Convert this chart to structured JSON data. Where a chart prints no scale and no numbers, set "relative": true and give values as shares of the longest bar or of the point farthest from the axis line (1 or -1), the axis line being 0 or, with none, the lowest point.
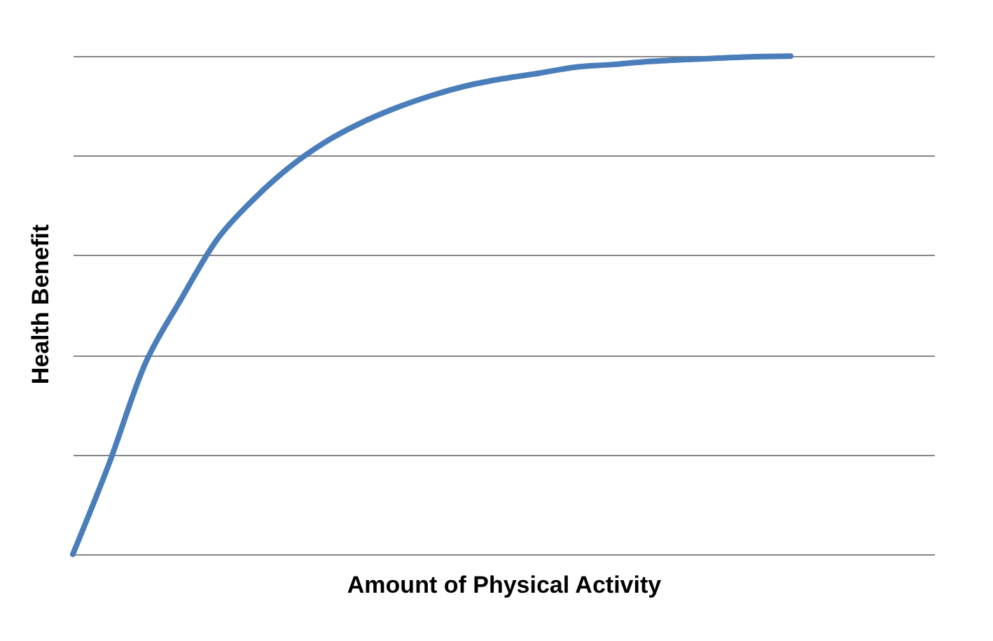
{
  "chart_data": {
    "type": "line",
    "relative": true,
    "xlabel": "Amount of Physical Activity",
    "ylabel": "Health Benefit",
    "categories": [
      null,
      null,
      null,
      null,
      null,
      null,
      null,
      null,
      null,
      null,
      null,
      null,
      null,
      null,
      null,
      null,
      null,
      null,
      null,
      null,
      null,
      null,
      null,
      null,
      null
    ],
    "series": [
      {
        "color": "#4a7ebb",
        "values": [
          0,
          0.18,
          0.38,
          0.51,
          0.63,
          0.71,
          0.775,
          0.826,
          0.865,
          0.896,
          0.921,
          0.941,
          0.955,
          0.966,
          0.978,
          0.983,
          0.989,
          0.993,
          0.996,
          0.999,
          1.0,
          null,
          null,
          null,
          null
        ]
      }
    ],
    "grid": "y",
    "tick_labels": false,
    "marker": "none",
    "line_style": "solid"
  }
}
